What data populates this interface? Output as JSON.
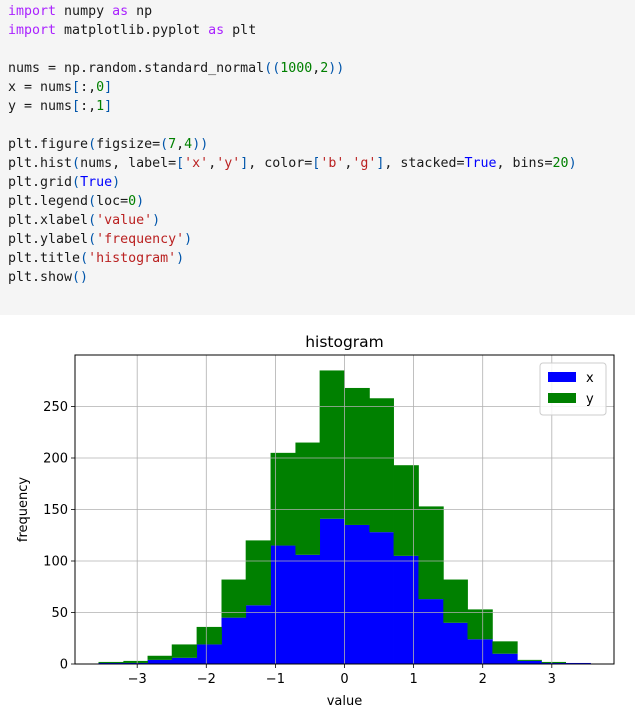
{
  "code_cell": {
    "lines": [
      [
        [
          "kw",
          "import"
        ],
        [
          "plain",
          " numpy "
        ],
        [
          "kw",
          "as"
        ],
        [
          "plain",
          " np"
        ]
      ],
      [
        [
          "kw",
          "import"
        ],
        [
          "plain",
          " matplotlib.pyplot "
        ],
        [
          "kw",
          "as"
        ],
        [
          "plain",
          " plt"
        ]
      ],
      [],
      [
        [
          "plain",
          "nums = np.random.standard_normal"
        ],
        [
          "paren",
          "(("
        ],
        [
          "num",
          "1000"
        ],
        [
          "plain",
          ","
        ],
        [
          "num",
          "2"
        ],
        [
          "paren",
          "))"
        ]
      ],
      [
        [
          "plain",
          "x = nums"
        ],
        [
          "paren",
          "["
        ],
        [
          "plain",
          ":,"
        ],
        [
          "num",
          "0"
        ],
        [
          "paren",
          "]"
        ]
      ],
      [
        [
          "plain",
          "y = nums"
        ],
        [
          "paren",
          "["
        ],
        [
          "plain",
          ":,"
        ],
        [
          "num",
          "1"
        ],
        [
          "paren",
          "]"
        ]
      ],
      [],
      [
        [
          "plain",
          "plt.figure"
        ],
        [
          "paren",
          "("
        ],
        [
          "plain",
          "figsize="
        ],
        [
          "paren",
          "("
        ],
        [
          "num",
          "7"
        ],
        [
          "plain",
          ","
        ],
        [
          "num",
          "4"
        ],
        [
          "paren",
          "))"
        ]
      ],
      [
        [
          "plain",
          "plt.hist"
        ],
        [
          "paren",
          "("
        ],
        [
          "plain",
          "nums, label="
        ],
        [
          "paren",
          "["
        ],
        [
          "str",
          "'x'"
        ],
        [
          "plain",
          ","
        ],
        [
          "str",
          "'y'"
        ],
        [
          "paren",
          "]"
        ],
        [
          "plain",
          ", color="
        ],
        [
          "paren",
          "["
        ],
        [
          "str",
          "'b'"
        ],
        [
          "plain",
          ","
        ],
        [
          "str",
          "'g'"
        ],
        [
          "paren",
          "]"
        ],
        [
          "plain",
          ", stacked="
        ],
        [
          "const",
          "True"
        ],
        [
          "plain",
          ", bins="
        ],
        [
          "num",
          "20"
        ],
        [
          "paren",
          ")"
        ]
      ],
      [
        [
          "plain",
          "plt.grid"
        ],
        [
          "paren",
          "("
        ],
        [
          "const",
          "True"
        ],
        [
          "paren",
          ")"
        ]
      ],
      [
        [
          "plain",
          "plt.legend"
        ],
        [
          "paren",
          "("
        ],
        [
          "plain",
          "loc="
        ],
        [
          "num",
          "0"
        ],
        [
          "paren",
          ")"
        ]
      ],
      [
        [
          "plain",
          "plt.xlabel"
        ],
        [
          "paren",
          "("
        ],
        [
          "str",
          "'value'"
        ],
        [
          "paren",
          ")"
        ]
      ],
      [
        [
          "plain",
          "plt.ylabel"
        ],
        [
          "paren",
          "("
        ],
        [
          "str",
          "'frequency'"
        ],
        [
          "paren",
          ")"
        ]
      ],
      [
        [
          "plain",
          "plt.title"
        ],
        [
          "paren",
          "("
        ],
        [
          "str",
          "'histogram'"
        ],
        [
          "paren",
          ")"
        ]
      ],
      [
        [
          "plain",
          "plt.show"
        ],
        [
          "paren",
          "()"
        ]
      ]
    ]
  },
  "chart_data": {
    "type": "bar",
    "stacked": true,
    "title": "histogram",
    "xlabel": "value",
    "ylabel": "frequency",
    "grid": true,
    "legend_position": "top-right",
    "xlim": [
      -3.9,
      3.9
    ],
    "ylim": [
      0,
      300
    ],
    "xticks": [
      -3,
      -2,
      -1,
      0,
      1,
      2,
      3
    ],
    "xtick_labels": [
      "−3",
      "−2",
      "−1",
      "0",
      "1",
      "2",
      "3"
    ],
    "yticks": [
      0,
      50,
      100,
      150,
      200,
      250
    ],
    "ytick_labels": [
      "0",
      "50",
      "100",
      "150",
      "200",
      "250"
    ],
    "bin_edges": [
      -3.56,
      -3.2,
      -2.85,
      -2.5,
      -2.14,
      -1.78,
      -1.43,
      -1.07,
      -0.71,
      -0.36,
      0.0,
      0.36,
      0.71,
      1.07,
      1.43,
      1.78,
      2.14,
      2.5,
      2.85,
      3.2,
      3.56
    ],
    "series": [
      {
        "name": "x",
        "color": "#0000ff",
        "values": [
          1,
          1,
          4,
          6,
          19,
          45,
          57,
          115,
          106,
          141,
          135,
          128,
          105,
          63,
          40,
          24,
          10,
          3,
          1,
          1
        ]
      },
      {
        "name": "y",
        "color": "#008000",
        "values": [
          1,
          2,
          4,
          13,
          17,
          37,
          63,
          90,
          109,
          144,
          133,
          130,
          88,
          90,
          42,
          29,
          12,
          1,
          1,
          0
        ]
      }
    ]
  }
}
